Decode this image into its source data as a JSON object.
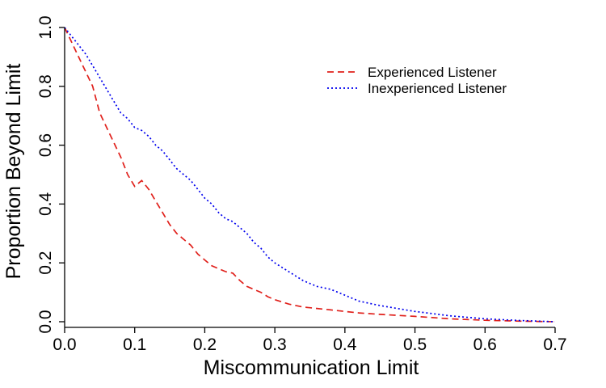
{
  "chart_data": {
    "type": "line",
    "xlabel": "Miscommunication Limit",
    "ylabel": "Proportion Beyond Limit",
    "xlim": [
      0,
      0.7
    ],
    "ylim": [
      0,
      1.0
    ],
    "x_ticks": [
      "0.0",
      "0.1",
      "0.2",
      "0.3",
      "0.4",
      "0.5",
      "0.6",
      "0.7"
    ],
    "y_ticks": [
      "0.0",
      "0.2",
      "0.4",
      "0.6",
      "0.8",
      "1.0"
    ],
    "grid": false,
    "legend_position": "top-right",
    "series": [
      {
        "name": "Experienced Listener",
        "color": "#e0201b",
        "dash": "dashed",
        "x": [
          0.0,
          0.01,
          0.02,
          0.03,
          0.04,
          0.05,
          0.06,
          0.07,
          0.08,
          0.09,
          0.1,
          0.11,
          0.12,
          0.13,
          0.14,
          0.15,
          0.16,
          0.17,
          0.18,
          0.19,
          0.2,
          0.21,
          0.22,
          0.23,
          0.24,
          0.25,
          0.26,
          0.27,
          0.28,
          0.29,
          0.3,
          0.32,
          0.34,
          0.36,
          0.38,
          0.4,
          0.42,
          0.45,
          0.5,
          0.55,
          0.6,
          0.65,
          0.7
        ],
        "y": [
          1.0,
          0.95,
          0.9,
          0.85,
          0.8,
          0.71,
          0.66,
          0.61,
          0.56,
          0.5,
          0.46,
          0.48,
          0.45,
          0.41,
          0.37,
          0.33,
          0.3,
          0.28,
          0.26,
          0.23,
          0.21,
          0.19,
          0.18,
          0.17,
          0.165,
          0.14,
          0.12,
          0.11,
          0.1,
          0.085,
          0.075,
          0.06,
          0.05,
          0.045,
          0.04,
          0.035,
          0.03,
          0.025,
          0.018,
          0.01,
          0.005,
          0.002,
          0.0
        ]
      },
      {
        "name": "Inexperienced Listener",
        "color": "#0000ee",
        "dash": "dotted",
        "x": [
          0.0,
          0.01,
          0.02,
          0.03,
          0.04,
          0.05,
          0.06,
          0.07,
          0.08,
          0.09,
          0.1,
          0.11,
          0.12,
          0.13,
          0.14,
          0.15,
          0.16,
          0.17,
          0.18,
          0.19,
          0.2,
          0.21,
          0.22,
          0.23,
          0.24,
          0.25,
          0.26,
          0.27,
          0.28,
          0.29,
          0.3,
          0.32,
          0.34,
          0.36,
          0.38,
          0.4,
          0.42,
          0.45,
          0.5,
          0.55,
          0.6,
          0.65,
          0.7
        ],
        "y": [
          1.0,
          0.97,
          0.94,
          0.91,
          0.87,
          0.83,
          0.79,
          0.75,
          0.71,
          0.69,
          0.66,
          0.65,
          0.63,
          0.6,
          0.58,
          0.55,
          0.52,
          0.5,
          0.48,
          0.45,
          0.42,
          0.4,
          0.37,
          0.35,
          0.34,
          0.32,
          0.3,
          0.27,
          0.25,
          0.22,
          0.2,
          0.17,
          0.14,
          0.12,
          0.11,
          0.09,
          0.07,
          0.055,
          0.035,
          0.02,
          0.01,
          0.004,
          0.0
        ]
      }
    ]
  }
}
